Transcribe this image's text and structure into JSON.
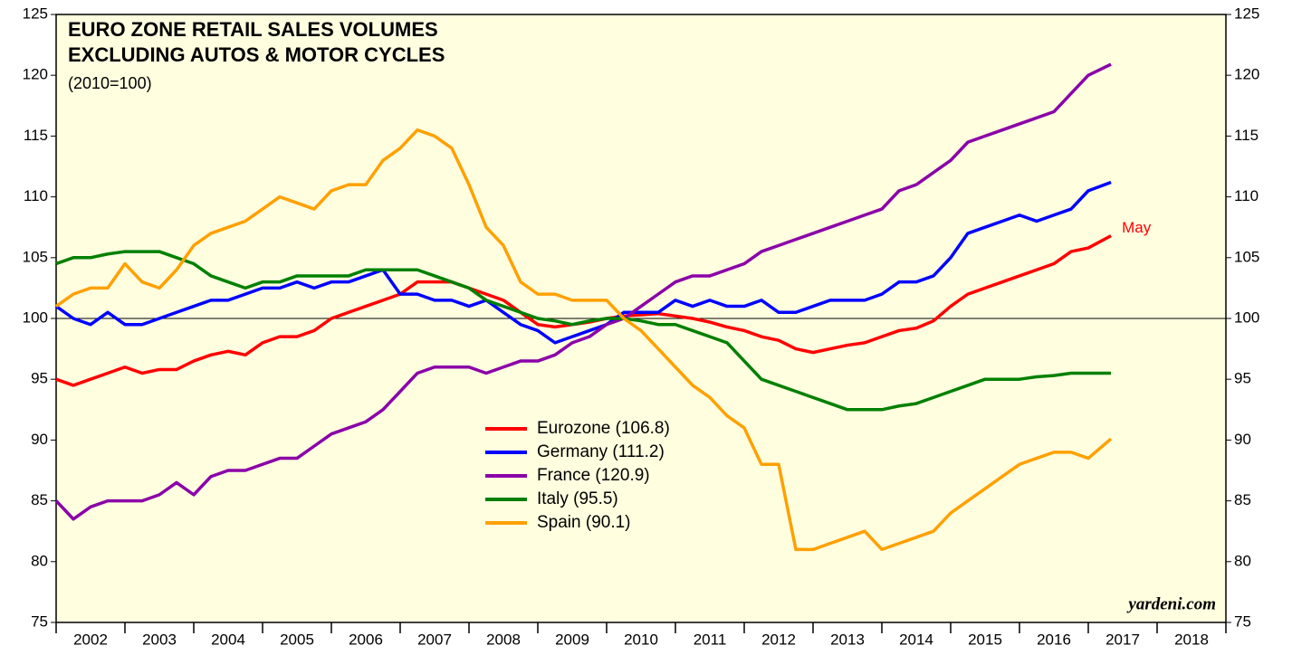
{
  "chart_data": {
    "type": "line",
    "title": [
      "EURO ZONE RETAIL SALES VOLUMES",
      "EXCLUDING AUTOS & MOTOR CYCLES"
    ],
    "subtitle": "(2010=100)",
    "annotation": "May",
    "source": "yardeni.com",
    "x": [
      2002,
      2002.25,
      2002.5,
      2002.75,
      2003,
      2003.25,
      2003.5,
      2003.75,
      2004,
      2004.25,
      2004.5,
      2004.75,
      2005,
      2005.25,
      2005.5,
      2005.75,
      2006,
      2006.25,
      2006.5,
      2006.75,
      2007,
      2007.25,
      2007.5,
      2007.75,
      2008,
      2008.25,
      2008.5,
      2008.75,
      2009,
      2009.25,
      2009.5,
      2009.75,
      2010,
      2010.25,
      2010.5,
      2010.75,
      2011,
      2011.25,
      2011.5,
      2011.75,
      2012,
      2012.25,
      2012.5,
      2012.75,
      2013,
      2013.25,
      2013.5,
      2013.75,
      2014,
      2014.25,
      2014.5,
      2014.75,
      2015,
      2015.25,
      2015.5,
      2015.75,
      2016,
      2016.25,
      2016.5,
      2016.75,
      2017,
      2017.33
    ],
    "series": [
      {
        "name": "Eurozone (106.8)",
        "color": "#ff0000",
        "values": [
          95,
          94.5,
          95,
          95.5,
          96,
          95.5,
          95.8,
          95.8,
          96.5,
          97,
          97.3,
          97,
          98,
          98.5,
          98.5,
          99,
          100,
          100.5,
          101,
          101.5,
          102,
          103,
          103,
          103,
          102.5,
          102,
          101.5,
          100.5,
          99.5,
          99.3,
          99.5,
          99.7,
          100,
          100.2,
          100.3,
          100.4,
          100.2,
          100,
          99.7,
          99.3,
          99,
          98.5,
          98.2,
          97.5,
          97.2,
          97.5,
          97.8,
          98,
          98.5,
          99,
          99.2,
          99.8,
          101,
          102,
          102.5,
          103,
          103.5,
          104,
          104.5,
          105.5,
          105.8,
          106.8
        ]
      },
      {
        "name": "Germany (111.2)",
        "color": "#0000ff",
        "values": [
          101,
          100,
          99.5,
          100.5,
          99.5,
          99.5,
          100,
          100.5,
          101,
          101.5,
          101.5,
          102,
          102.5,
          102.5,
          103,
          102.5,
          103,
          103,
          103.5,
          104,
          102,
          102,
          101.5,
          101.5,
          101,
          101.5,
          100.5,
          99.5,
          99,
          98,
          98.5,
          99,
          99.5,
          100.5,
          100.5,
          100.5,
          101.5,
          101,
          101.5,
          101,
          101,
          101.5,
          100.5,
          100.5,
          101,
          101.5,
          101.5,
          101.5,
          102,
          103,
          103,
          103.5,
          105,
          107,
          107.5,
          108,
          108.5,
          108,
          108.5,
          109,
          110.5,
          111.2
        ]
      },
      {
        "name": "France (120.9)",
        "color": "#8b00a8",
        "values": [
          85,
          83.5,
          84.5,
          85,
          85,
          85,
          85.5,
          86.5,
          85.5,
          87,
          87.5,
          87.5,
          88,
          88.5,
          88.5,
          89.5,
          90.5,
          91,
          91.5,
          92.5,
          94,
          95.5,
          96,
          96,
          96,
          95.5,
          96,
          96.5,
          96.5,
          97,
          98,
          98.5,
          99.5,
          100,
          101,
          102,
          103,
          103.5,
          103.5,
          104,
          104.5,
          105.5,
          106,
          106.5,
          107,
          107.5,
          108,
          108.5,
          109,
          110.5,
          111,
          112,
          113,
          114.5,
          115,
          115.5,
          116,
          116.5,
          117,
          118.5,
          120,
          120.9
        ]
      },
      {
        "name": "Italy (95.5)",
        "color": "#008000",
        "values": [
          104.5,
          105,
          105,
          105.3,
          105.5,
          105.5,
          105.5,
          105,
          104.5,
          103.5,
          103,
          102.5,
          103,
          103,
          103.5,
          103.5,
          103.5,
          103.5,
          104,
          104,
          104,
          104,
          103.5,
          103,
          102.5,
          101.5,
          101,
          100.5,
          100,
          99.8,
          99.5,
          99.8,
          100,
          100,
          99.8,
          99.5,
          99.5,
          99,
          98.5,
          98,
          96.5,
          95,
          94.5,
          94,
          93.5,
          93,
          92.5,
          92.5,
          92.5,
          92.8,
          93,
          93.5,
          94,
          94.5,
          95,
          95,
          95,
          95.2,
          95.3,
          95.5,
          95.5,
          95.5
        ]
      },
      {
        "name": "Spain (90.1)",
        "color": "#ffa000",
        "values": [
          101,
          102,
          102.5,
          102.5,
          104.5,
          103,
          102.5,
          104,
          106,
          107,
          107.5,
          108,
          109,
          110,
          109.5,
          109,
          110.5,
          111,
          111,
          113,
          114,
          115.5,
          115,
          114,
          111,
          107.5,
          106,
          103,
          102,
          102,
          101.5,
          101.5,
          101.5,
          100,
          99,
          97.5,
          96,
          94.5,
          93.5,
          92,
          91,
          88,
          88,
          81,
          81,
          81.5,
          82,
          82.5,
          81,
          81.5,
          82,
          82.5,
          84,
          85,
          86,
          87,
          88,
          88.5,
          89,
          89,
          88.5,
          90.1
        ]
      }
    ],
    "xlim": [
      2002,
      2019
    ],
    "xticks": [
      2002,
      2003,
      2004,
      2005,
      2006,
      2007,
      2008,
      2009,
      2010,
      2011,
      2012,
      2013,
      2014,
      2015,
      2016,
      2017,
      2018,
      2019
    ],
    "xtick_labels": [
      "2002",
      "2003",
      "2004",
      "2005",
      "2006",
      "2007",
      "2008",
      "2009",
      "2010",
      "2011",
      "2012",
      "2013",
      "2014",
      "2015",
      "2016",
      "2017",
      "2018"
    ],
    "ylim": [
      75,
      125
    ],
    "yticks": [
      75,
      80,
      85,
      90,
      95,
      100,
      105,
      110,
      115,
      120,
      125
    ],
    "reference_line": 100,
    "grid": false
  }
}
